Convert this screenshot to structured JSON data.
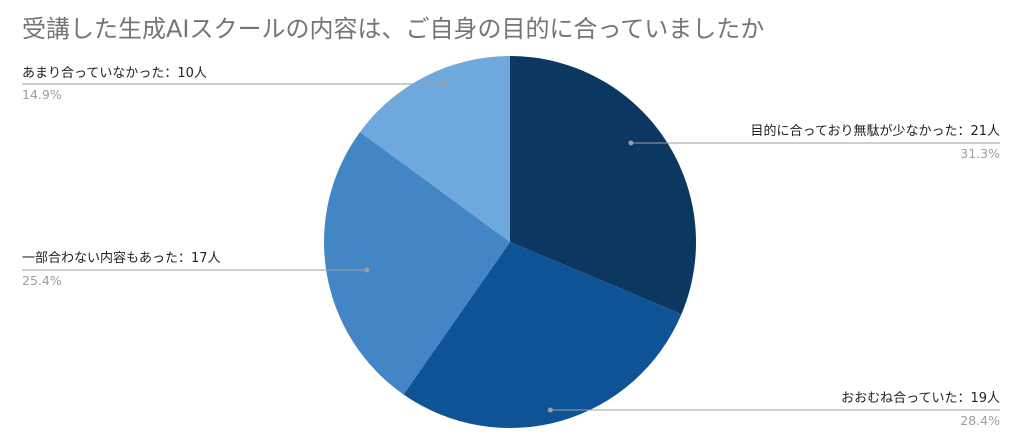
{
  "chart_data": {
    "type": "pie",
    "title": "受講した生成AIスクールの内容は、ご自身の目的に合っていましたか",
    "slices": [
      {
        "label": "目的に合っており無駄が少なかった：21人",
        "value": 21,
        "percent": "31.3%",
        "color": "#0b3761"
      },
      {
        "label": "おおむね合っていた：19人",
        "value": 19,
        "percent": "28.4%",
        "color": "#0f5397"
      },
      {
        "label": "一部合わない内容もあった：17人",
        "value": 17,
        "percent": "25.4%",
        "color": "#4386c6"
      },
      {
        "label": "あまり合っていなかった：10人",
        "value": 10,
        "percent": "14.9%",
        "color": "#6fa8dc"
      }
    ],
    "legend": "none"
  }
}
